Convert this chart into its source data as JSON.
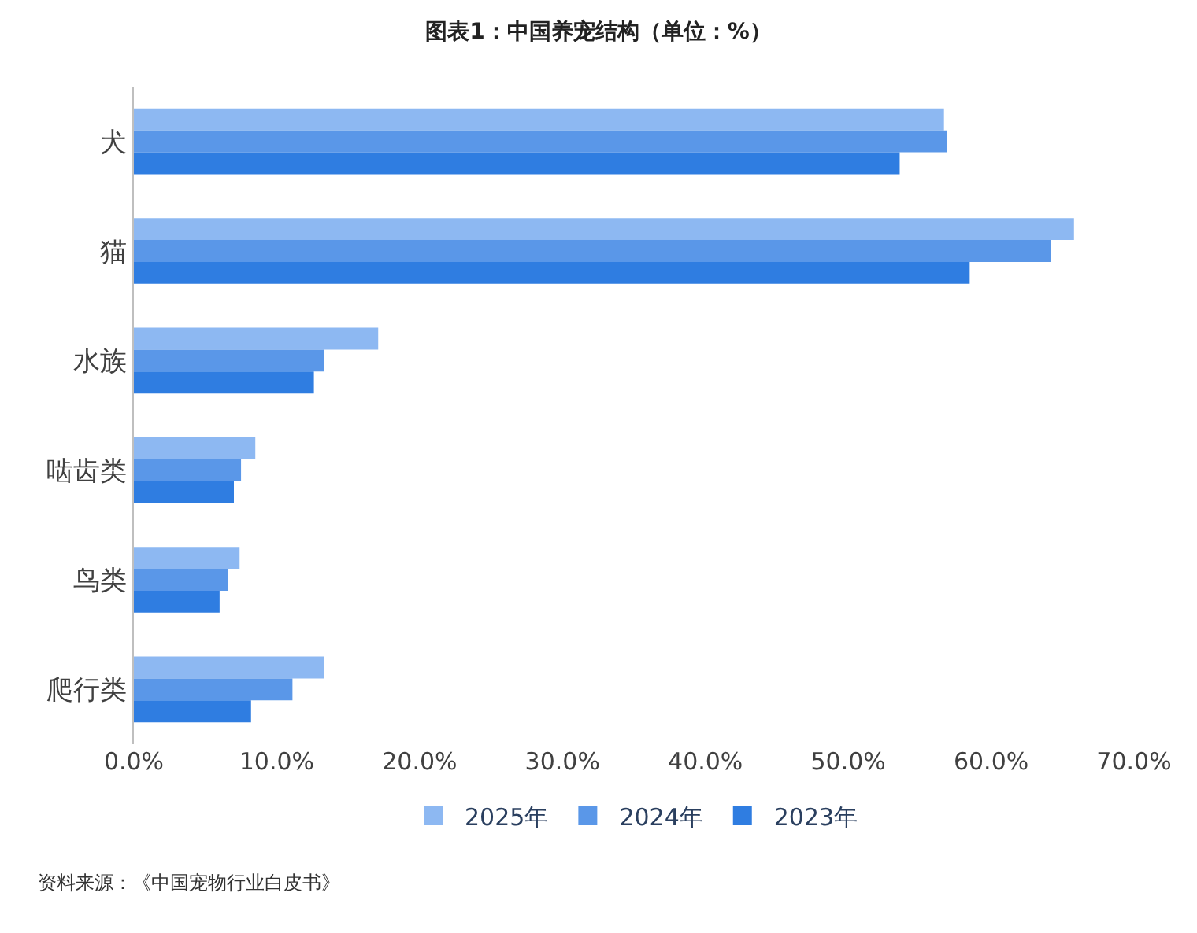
{
  "chart_data": {
    "type": "bar",
    "orientation": "horizontal",
    "title": "图表1：中国养宠结构（单位：%）",
    "categories": [
      "犬",
      "猫",
      "水族",
      "啮齿类",
      "鸟类",
      "爬行类"
    ],
    "series": [
      {
        "name": "2025年",
        "color": "#8db8f2",
        "values": [
          56.7,
          65.8,
          17.1,
          8.5,
          7.4,
          13.3
        ]
      },
      {
        "name": "2024年",
        "color": "#5a97e8",
        "values": [
          56.9,
          64.2,
          13.3,
          7.5,
          6.6,
          11.1
        ]
      },
      {
        "name": "2023年",
        "color": "#2f7de1",
        "values": [
          53.6,
          58.5,
          12.6,
          7.0,
          6.0,
          8.2
        ]
      }
    ],
    "xlim": [
      0,
      70
    ],
    "xticks": [
      {
        "value": 0,
        "label": "0.0%"
      },
      {
        "value": 10,
        "label": "10.0%"
      },
      {
        "value": 20,
        "label": "20.0%"
      },
      {
        "value": 30,
        "label": "30.0%"
      },
      {
        "value": 40,
        "label": "40.0%"
      },
      {
        "value": 50,
        "label": "50.0%"
      },
      {
        "value": 60,
        "label": "60.0%"
      },
      {
        "value": 70,
        "label": "70.0%"
      }
    ],
    "grid": false,
    "legend": "bottom",
    "annotations": [
      "资料来源：《中国宠物行业白皮书》"
    ]
  }
}
